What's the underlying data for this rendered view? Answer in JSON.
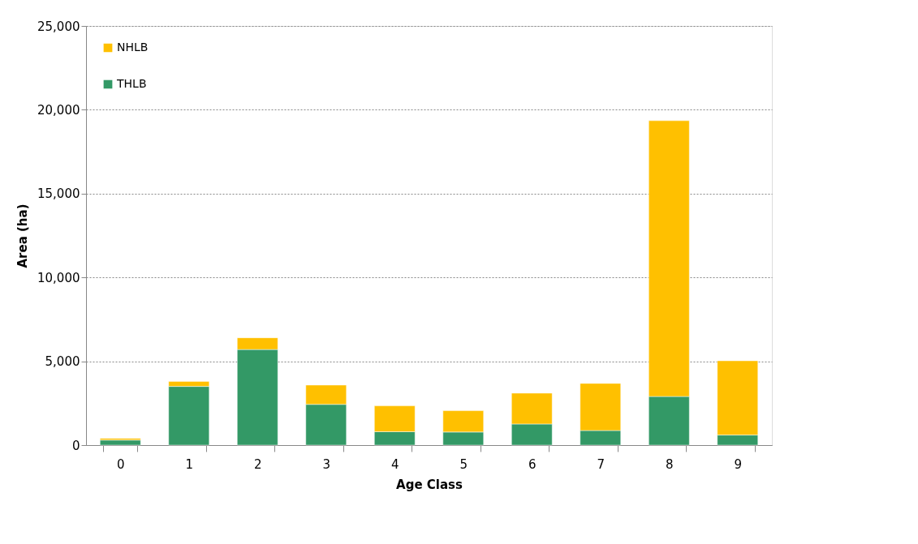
{
  "chart_data": {
    "type": "bar",
    "stacked": true,
    "xlabel": "Age Class",
    "ylabel": "Area (ha)",
    "categories": [
      "0",
      "1",
      "2",
      "3",
      "4",
      "5",
      "6",
      "7",
      "8",
      "9"
    ],
    "series": [
      {
        "name": "THLB",
        "color": "#339966",
        "values": [
          300,
          3500,
          5700,
          2430,
          800,
          780,
          1260,
          870,
          2900,
          600
        ]
      },
      {
        "name": "NHLB",
        "color": "#ffc000",
        "values": [
          100,
          300,
          700,
          1150,
          1540,
          1270,
          1840,
          2810,
          16450,
          4430
        ]
      }
    ],
    "ylim": [
      0,
      25000
    ],
    "yticks": [
      0,
      {
        "value": 5000,
        "label": "5,000"
      },
      {
        "value": 10000,
        "label": "10,000"
      },
      {
        "value": 15000,
        "label": "15,000"
      },
      {
        "value": 20000,
        "label": "20,000"
      },
      {
        "value": 25000,
        "label": "25,000"
      }
    ],
    "grid": "y",
    "legend": "top left"
  }
}
